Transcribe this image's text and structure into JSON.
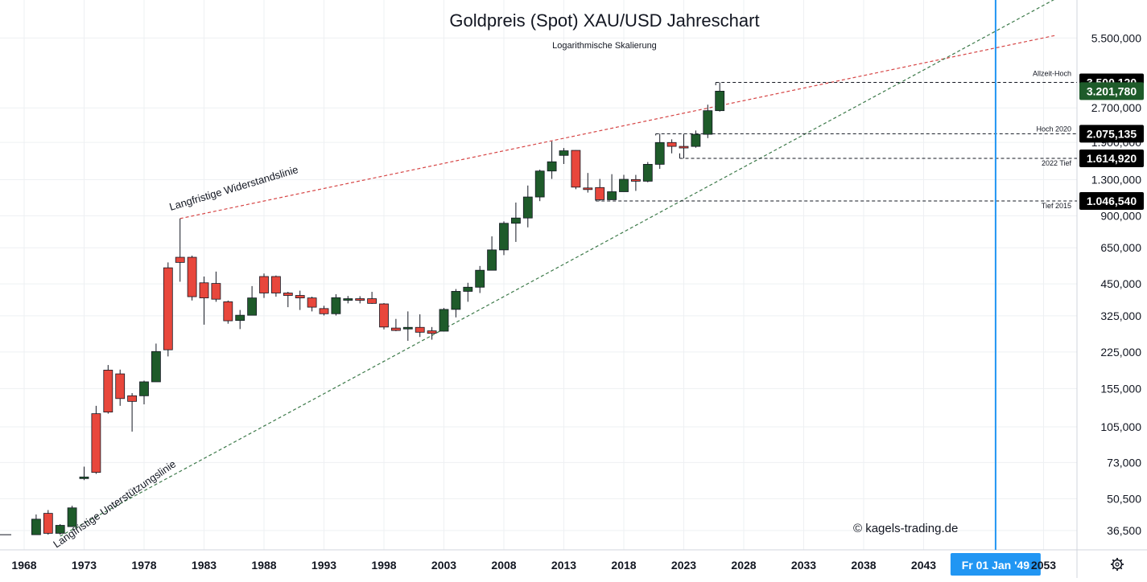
{
  "colors": {
    "up": "#1e5b2a",
    "down": "#e8473c",
    "wick": "#131722",
    "resistance": "#d64545",
    "support": "#3d7a4a",
    "crosshair": "#2196f3",
    "grid": "#eef0f3",
    "level_bg": "#000000",
    "last_bg": "#1e5b2a"
  },
  "chart_data": {
    "type": "candlestick",
    "title": "Goldpreis (Spot) XAU/USD Jahreschart",
    "subtitle": "Logarithmische Skalierung",
    "y_scale": "log",
    "ylim": [
      30,
      8100
    ],
    "xlim": [
      1968,
      2054
    ],
    "x_ticks": [
      1968,
      1973,
      1978,
      1983,
      1988,
      1993,
      1998,
      2003,
      2008,
      2013,
      2018,
      2023,
      2028,
      2033,
      2038,
      2043,
      "2053"
    ],
    "y_ticks": [
      "5.500,000",
      "2.700,000",
      "1.900,000",
      "1.300,000",
      "900,000",
      "650,000",
      "450,000",
      "325,000",
      "225,000",
      "155,000",
      "105,000",
      "73,000",
      "50,500",
      "36,500"
    ],
    "candles": [
      {
        "year": 1969,
        "open": 35.0,
        "high": 43.0,
        "low": 35.0,
        "close": 41.0
      },
      {
        "year": 1970,
        "open": 43.5,
        "high": 45.0,
        "low": 35.0,
        "close": 35.5
      },
      {
        "year": 1971,
        "open": 35.5,
        "high": 39.0,
        "low": 35.0,
        "close": 38.5
      },
      {
        "year": 1972,
        "open": 38.0,
        "high": 47.0,
        "low": 38.0,
        "close": 46.0
      },
      {
        "year": 1973,
        "open": 63.0,
        "high": 70.0,
        "low": 61.0,
        "close": 63.0
      },
      {
        "year": 1974,
        "open": 120.0,
        "high": 130.0,
        "low": 65.0,
        "close": 66.0
      },
      {
        "year": 1975,
        "open": 187.0,
        "high": 197.0,
        "low": 120.0,
        "close": 122.0
      },
      {
        "year": 1976,
        "open": 180.0,
        "high": 188.0,
        "low": 130.0,
        "close": 140.0
      },
      {
        "year": 1977,
        "open": 144.0,
        "high": 148.0,
        "low": 100.0,
        "close": 136.0
      },
      {
        "year": 1978,
        "open": 144.0,
        "high": 168.0,
        "low": 132.0,
        "close": 166.0
      },
      {
        "year": 1979,
        "open": 166.0,
        "high": 245.0,
        "low": 167.0,
        "close": 226.0
      },
      {
        "year": 1980,
        "open": 530.0,
        "high": 560.0,
        "low": 215.0,
        "close": 230.0
      },
      {
        "year": 1981,
        "open": 590.0,
        "high": 875.0,
        "low": 460.0,
        "close": 560.0
      },
      {
        "year": 1982,
        "open": 590.0,
        "high": 600.0,
        "low": 380.0,
        "close": 395.0
      },
      {
        "year": 1983,
        "open": 455.0,
        "high": 485.0,
        "low": 297.0,
        "close": 390.0
      },
      {
        "year": 1984,
        "open": 452.0,
        "high": 510.0,
        "low": 375.0,
        "close": 385.0
      },
      {
        "year": 1985,
        "open": 375.0,
        "high": 380.0,
        "low": 300.0,
        "close": 309.0
      },
      {
        "year": 1986,
        "open": 310.0,
        "high": 345.0,
        "low": 284.0,
        "close": 327.0
      },
      {
        "year": 1987,
        "open": 327.0,
        "high": 440.0,
        "low": 327.0,
        "close": 390.0
      },
      {
        "year": 1988,
        "open": 485.0,
        "high": 500.0,
        "low": 390.0,
        "close": 410.0
      },
      {
        "year": 1989,
        "open": 485.0,
        "high": 490.0,
        "low": 395.0,
        "close": 410.0
      },
      {
        "year": 1990,
        "open": 410.0,
        "high": 415.0,
        "low": 355.0,
        "close": 400.0
      },
      {
        "year": 1991,
        "open": 400.0,
        "high": 420.0,
        "low": 345.0,
        "close": 390.0
      },
      {
        "year": 1992,
        "open": 390.0,
        "high": 395.0,
        "low": 340.0,
        "close": 355.0
      },
      {
        "year": 1993,
        "open": 350.0,
        "high": 360.0,
        "low": 326.0,
        "close": 332.0
      },
      {
        "year": 1994,
        "open": 332.0,
        "high": 405.0,
        "low": 326.0,
        "close": 391.0
      },
      {
        "year": 1995,
        "open": 383.0,
        "high": 398.0,
        "low": 369.0,
        "close": 387.0
      },
      {
        "year": 1996,
        "open": 387.0,
        "high": 397.0,
        "low": 369.0,
        "close": 383.0
      },
      {
        "year": 1997,
        "open": 387.0,
        "high": 415.0,
        "low": 367.0,
        "close": 369.0
      },
      {
        "year": 1998,
        "open": 367.0,
        "high": 370.0,
        "low": 283.0,
        "close": 290.0
      },
      {
        "year": 1999,
        "open": 287.0,
        "high": 315.0,
        "low": 278.0,
        "close": 280.0
      },
      {
        "year": 2000,
        "open": 289.0,
        "high": 340.0,
        "low": 252.0,
        "close": 289.0
      },
      {
        "year": 2001,
        "open": 289.0,
        "high": 330.0,
        "low": 262.0,
        "close": 275.0
      },
      {
        "year": 2002,
        "open": 279.0,
        "high": 290.0,
        "low": 255.0,
        "close": 272.0
      },
      {
        "year": 2003,
        "open": 278.0,
        "high": 352.0,
        "low": 277.0,
        "close": 347.0
      },
      {
        "year": 2004,
        "open": 347.0,
        "high": 427.0,
        "low": 320.0,
        "close": 417.0
      },
      {
        "year": 2005,
        "open": 417.0,
        "high": 455.0,
        "low": 375.0,
        "close": 435.0
      },
      {
        "year": 2006,
        "open": 435.0,
        "high": 540.0,
        "low": 410.0,
        "close": 517.0
      },
      {
        "year": 2007,
        "open": 517.0,
        "high": 730.0,
        "low": 520.0,
        "close": 636.0
      },
      {
        "year": 2008,
        "open": 636.0,
        "high": 850.0,
        "low": 603.0,
        "close": 834.0
      },
      {
        "year": 2009,
        "open": 834.0,
        "high": 1030.0,
        "low": 690.0,
        "close": 880.0
      },
      {
        "year": 2010,
        "open": 880.0,
        "high": 1225.0,
        "low": 800.0,
        "close": 1090.0
      },
      {
        "year": 2011,
        "open": 1090.0,
        "high": 1440.0,
        "low": 1045.0,
        "close": 1420.0
      },
      {
        "year": 2012,
        "open": 1420.0,
        "high": 1920.0,
        "low": 1310.0,
        "close": 1560.0
      },
      {
        "year": 2013,
        "open": 1665.0,
        "high": 1795.0,
        "low": 1525.0,
        "close": 1745.0
      },
      {
        "year": 2014,
        "open": 1752.0,
        "high": 1755.0,
        "low": 1180.0,
        "close": 1205.0
      },
      {
        "year": 2015,
        "open": 1195.0,
        "high": 1392.0,
        "low": 1140.0,
        "close": 1185.0
      },
      {
        "year": 2016,
        "open": 1200.0,
        "high": 1310.0,
        "low": 1045.0,
        "close": 1060.0
      },
      {
        "year": 2017,
        "open": 1060.0,
        "high": 1375.0,
        "low": 1060.0,
        "close": 1150.0
      },
      {
        "year": 2018,
        "open": 1150.0,
        "high": 1365.0,
        "low": 1150.0,
        "close": 1305.0
      },
      {
        "year": 2019,
        "open": 1302.0,
        "high": 1365.0,
        "low": 1160.0,
        "close": 1280.0
      },
      {
        "year": 2020,
        "open": 1280.0,
        "high": 1556.0,
        "low": 1266.0,
        "close": 1520.0
      },
      {
        "year": 2021,
        "open": 1520.0,
        "high": 2075.0,
        "low": 1451.0,
        "close": 1898.0
      },
      {
        "year": 2022,
        "open": 1898.0,
        "high": 1960.0,
        "low": 1700.0,
        "close": 1825.0
      },
      {
        "year": 2023,
        "open": 1825.0,
        "high": 2070.0,
        "low": 1615.0,
        "close": 1824.0
      },
      {
        "year": 2024,
        "open": 1824.0,
        "high": 2145.0,
        "low": 1800.0,
        "close": 2063.0
      },
      {
        "year": 2025,
        "open": 2063.0,
        "high": 2790.0,
        "low": 1985.0,
        "close": 2625.0
      },
      {
        "year": 2026,
        "open": 2625.0,
        "high": 3500.12,
        "low": 2600.0,
        "close": 3201.78
      }
    ],
    "levels": [
      {
        "label": "Allzeit-Hoch",
        "value_text": "3.500,120",
        "value": 3500.12,
        "from_year": 2026,
        "style": "level"
      },
      {
        "label": "",
        "value_text": "3.201,780",
        "value": 3201.78,
        "from_year": 2026,
        "style": "last",
        "line": false
      },
      {
        "label": "Hoch 2020",
        "value_text": "2.075,135",
        "value": 2075.135,
        "from_year": 2021,
        "style": "level"
      },
      {
        "label": "2022 Tief",
        "value_text": "1.614,920",
        "value": 1614.92,
        "from_year": 2023,
        "style": "level"
      },
      {
        "label": "Tief 2015",
        "value_text": "1.046,540",
        "value": 1046.54,
        "from_year": 2016,
        "style": "level"
      }
    ],
    "trendlines": [
      {
        "name": "Langfristige Widerstandslinie",
        "from": {
          "year": 1981,
          "price": 875
        },
        "to": {
          "year": 2054,
          "price": 5650
        },
        "color_key": "resistance"
      },
      {
        "name": "Langfristige Unterstützungslinie",
        "from": {
          "year": 1971,
          "price": 34.5
        },
        "to": {
          "year": 2054,
          "price": 8200
        },
        "color_key": "support"
      }
    ],
    "crosshair": {
      "year": 2049,
      "label": "Fr 01 Jan '49"
    },
    "watermark": "© kagels-trading.de"
  }
}
